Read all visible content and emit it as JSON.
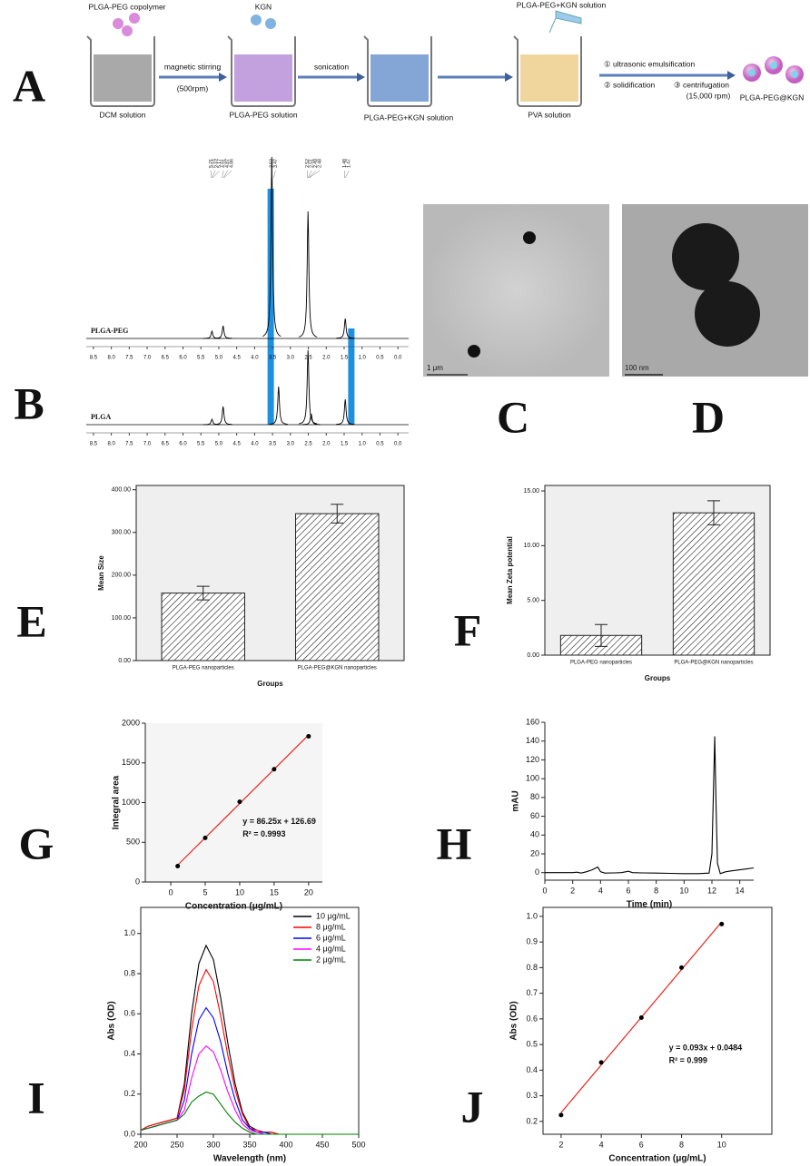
{
  "panel_labels": [
    "A",
    "B",
    "C",
    "D",
    "E",
    "F",
    "G",
    "H",
    "I",
    "J"
  ],
  "scheme": {
    "copolymer": "PLGA-PEG copolymer",
    "kgn": "KGN",
    "kgn_solution_top": "PLGA-PEG+KGN solution",
    "stirring": "magnetic stirring",
    "rpm": "(500rpm)",
    "sonication": "sonication",
    "dcm": "DCM solution",
    "plga_peg_solution": "PLGA-PEG solution",
    "plga_peg_kgn_solution": "PLGA-PEG+KGN solution",
    "pva": "PVA solution",
    "step1": "① ultrasonic emulsification",
    "step2": "② solidification",
    "step3": "③ centrifugation",
    "step3_rpm": "(15,000 rpm)",
    "product": "PLGA-PEG@KGN"
  },
  "images": [
    {
      "scale_label": "1 μm"
    },
    {
      "scale_label": "100 nm"
    }
  ],
  "chart_data": [
    {
      "type": "nmr",
      "xlim": [
        8.7,
        -0.3
      ],
      "xticks": [
        8.5,
        {
          "value": 8,
          "label": "8.0"
        },
        7.5,
        {
          "value": 7,
          "label": "7.0"
        },
        6.5,
        {
          "value": 6,
          "label": "6.0"
        },
        5.5,
        {
          "value": 5,
          "label": "5.0"
        },
        4.5,
        {
          "value": 4,
          "label": "4.0"
        },
        3.5,
        {
          "value": 3,
          "label": "3.0"
        },
        2.5,
        {
          "value": 2,
          "label": "2.0"
        },
        1.5,
        {
          "value": 1,
          "label": "1.0"
        },
        0.5,
        {
          "value": 0,
          "label": "0.0"
        }
      ],
      "peak_labels": [
        5.21,
        5.19,
        5.17,
        4.91,
        4.87,
        4.86,
        3.53,
        3.47,
        2.52,
        2.51,
        2.49,
        2.48,
        1.48,
        1.47
      ],
      "series": [
        {
          "name": "PLGA-PEG",
          "color": "#000000",
          "peaks": [
            {
              "x": 5.19,
              "height": 0.04
            },
            {
              "x": 4.88,
              "height": 0.07
            },
            {
              "x": 3.52,
              "height": 1.0
            },
            {
              "x": 2.51,
              "height": 0.7
            },
            {
              "x": 1.47,
              "height": 0.11
            }
          ]
        },
        {
          "name": "PLGA",
          "color": "#000000",
          "peaks": [
            {
              "x": 5.19,
              "height": 0.03
            },
            {
              "x": 4.88,
              "height": 0.1
            },
            {
              "x": 3.33,
              "height": 0.21
            },
            {
              "x": 2.51,
              "height": 0.41
            },
            {
              "x": 2.42,
              "height": 0.06
            },
            {
              "x": 1.47,
              "height": 0.14
            }
          ]
        }
      ],
      "highlights": [
        {
          "x": 3.55,
          "color": "#1e90e0"
        },
        {
          "x": 1.3,
          "color": "#1e90e0"
        }
      ]
    },
    {
      "type": "bar",
      "categories": [
        "PLGA-PEG nanoparticles",
        "PLGA-PEG@KGN nanoparticles"
      ],
      "values": [
        158,
        344
      ],
      "errors": [
        16,
        22
      ],
      "ylim": [
        0,
        410
      ],
      "yticks": [
        {
          "value": 0,
          "label": "0.00"
        },
        {
          "value": 100,
          "label": "100.00"
        },
        {
          "value": 200,
          "label": "200.00"
        },
        {
          "value": 300,
          "label": "300.00"
        },
        {
          "value": 400,
          "label": "400.00"
        }
      ],
      "xlabel": "Groups",
      "ylabel": "Mean Size",
      "hatch": true
    },
    {
      "type": "bar",
      "categories": [
        "PLGA-PEG nanoparticles",
        "PLGA-PEG@KGN nanoparticles"
      ],
      "values": [
        1.8,
        13.0
      ],
      "errors": [
        1.0,
        1.1
      ],
      "ylim": [
        0,
        15.5
      ],
      "yticks": [
        {
          "value": 0,
          "label": "0.00"
        },
        {
          "value": 5,
          "label": "5.00"
        },
        {
          "value": 10,
          "label": "10.00"
        },
        {
          "value": 15,
          "label": "15.00"
        }
      ],
      "xlabel": "Groups",
      "ylabel": "Mean Zeta potential",
      "hatch": true
    },
    {
      "type": "scatter",
      "x": [
        1,
        5,
        10,
        15,
        20
      ],
      "values": [
        200,
        556,
        1010,
        1420,
        1835
      ],
      "color": "#000000",
      "fit": {
        "slope": 86.25,
        "intercept": 126.69,
        "color": "#e8261c"
      },
      "xlim": [
        -3.7,
        22
      ],
      "ylim": [
        0,
        2000
      ],
      "xticks": [
        0,
        5,
        10,
        15,
        20
      ],
      "yticks": [
        0,
        500,
        1000,
        1500,
        2000
      ],
      "xlabel": "Concentration (μg/mL)",
      "ylabel": "Integral area",
      "annotations": [
        "y = 86.25x + 126.69",
        "R² = 0.9993"
      ]
    },
    {
      "type": "line",
      "x": [
        0,
        0.5,
        1,
        1.5,
        2,
        2.3,
        2.6,
        3,
        3.4,
        3.8,
        4.0,
        4.3,
        5,
        5.5,
        6,
        6.3,
        7,
        8,
        9,
        10,
        11,
        11.8,
        12.0,
        12.1,
        12.2,
        12.3,
        12.4,
        12.6,
        13,
        13.5,
        14,
        14.5,
        15
      ],
      "values": [
        0,
        0,
        0,
        0,
        0,
        0.5,
        -0.5,
        1,
        3,
        6,
        1,
        -0.5,
        -0.3,
        0,
        1.5,
        0,
        -0.3,
        -0.5,
        -0.8,
        -1,
        -1,
        -0.5,
        20,
        80,
        145,
        70,
        10,
        -1,
        1,
        2,
        3,
        4,
        5
      ],
      "color": "#000000",
      "xlim": [
        0,
        15
      ],
      "ylim": [
        -8,
        160
      ],
      "xticks": [
        0,
        2,
        4,
        6,
        8,
        10,
        12,
        14
      ],
      "yticks": [
        0,
        20,
        40,
        60,
        80,
        100,
        120,
        140,
        160
      ],
      "xlabel": "Time (min)",
      "ylabel": "mAU"
    },
    {
      "type": "line",
      "x": [
        200,
        210,
        220,
        230,
        240,
        250,
        260,
        270,
        280,
        290,
        300,
        310,
        320,
        330,
        340,
        350,
        360,
        370,
        380,
        390,
        400,
        410,
        420,
        430,
        440,
        450,
        460,
        470,
        480,
        490,
        500
      ],
      "series": [
        {
          "name": "10 μg/mL",
          "color": "#000000",
          "values": [
            0.02,
            0.04,
            0.05,
            0.06,
            0.07,
            0.08,
            0.25,
            0.6,
            0.85,
            0.94,
            0.87,
            0.68,
            0.45,
            0.25,
            0.11,
            0.04,
            0.02,
            0.01,
            0.01,
            0,
            0,
            0,
            0,
            0,
            0,
            0,
            0,
            0,
            0,
            0,
            0
          ]
        },
        {
          "name": "8 μg/mL",
          "color": "#ff0000",
          "values": [
            0.02,
            0.04,
            0.05,
            0.06,
            0.07,
            0.08,
            0.22,
            0.52,
            0.74,
            0.82,
            0.76,
            0.59,
            0.39,
            0.22,
            0.1,
            0.03,
            0.02,
            0.01,
            0.01,
            0,
            0,
            0,
            0,
            0,
            0,
            0,
            0,
            0,
            0,
            0,
            0
          ]
        },
        {
          "name": "6 μg/mL",
          "color": "#0000ff",
          "values": [
            0.02,
            0.03,
            0.04,
            0.05,
            0.06,
            0.07,
            0.17,
            0.4,
            0.57,
            0.63,
            0.58,
            0.46,
            0.3,
            0.17,
            0.07,
            0.03,
            0.01,
            0.01,
            0,
            0,
            0,
            0,
            0,
            0,
            0,
            0,
            0,
            0,
            0,
            0,
            0
          ]
        },
        {
          "name": "4 μg/mL",
          "color": "#ff00ff",
          "values": [
            0.02,
            0.03,
            0.04,
            0.05,
            0.06,
            0.07,
            0.12,
            0.28,
            0.4,
            0.44,
            0.41,
            0.32,
            0.21,
            0.12,
            0.05,
            0.02,
            0.01,
            0,
            0,
            0,
            0,
            0,
            0,
            0,
            0,
            0,
            0,
            0,
            0,
            0,
            0
          ]
        },
        {
          "name": "2 μg/mL",
          "color": "#008000",
          "values": [
            0.02,
            0.03,
            0.04,
            0.05,
            0.06,
            0.07,
            0.1,
            0.16,
            0.19,
            0.21,
            0.2,
            0.15,
            0.1,
            0.06,
            0.03,
            0.01,
            0,
            0,
            0,
            0,
            0,
            0,
            0,
            0,
            0,
            0,
            0,
            0,
            0,
            0,
            0
          ]
        }
      ],
      "xlim": [
        200,
        500
      ],
      "ylim": [
        0,
        1.13
      ],
      "xticks": [
        200,
        250,
        300,
        350,
        400,
        450,
        500
      ],
      "yticks": [
        {
          "value": 0,
          "label": "0.0"
        },
        0.2,
        0.4,
        0.6,
        0.8,
        {
          "value": 1,
          "label": "1.0"
        }
      ],
      "xlabel": "Wavelength (nm)",
      "ylabel": "Abs (OD)",
      "legend": "upper right"
    },
    {
      "type": "scatter",
      "x": [
        2,
        4,
        6,
        8,
        10
      ],
      "values": [
        0.225,
        0.43,
        0.605,
        0.8,
        0.97
      ],
      "color": "#000000",
      "fit": {
        "slope": 0.093,
        "intercept": 0.0484,
        "color": "#e8261c"
      },
      "xlim": [
        1.1,
        12.5
      ],
      "ylim": [
        0.15,
        1.035
      ],
      "xticks": [
        2,
        4,
        6,
        8,
        10
      ],
      "yticks": [
        0.2,
        0.3,
        0.4,
        0.5,
        0.6,
        0.7,
        0.8,
        0.9,
        {
          "value": 1,
          "label": "1.0"
        }
      ],
      "xlabel": "Concentration (μg/mL)",
      "ylabel": "Abs (OD)",
      "annotations": [
        "y = 0.093x + 0.0484",
        "R² = 0.999"
      ]
    }
  ]
}
